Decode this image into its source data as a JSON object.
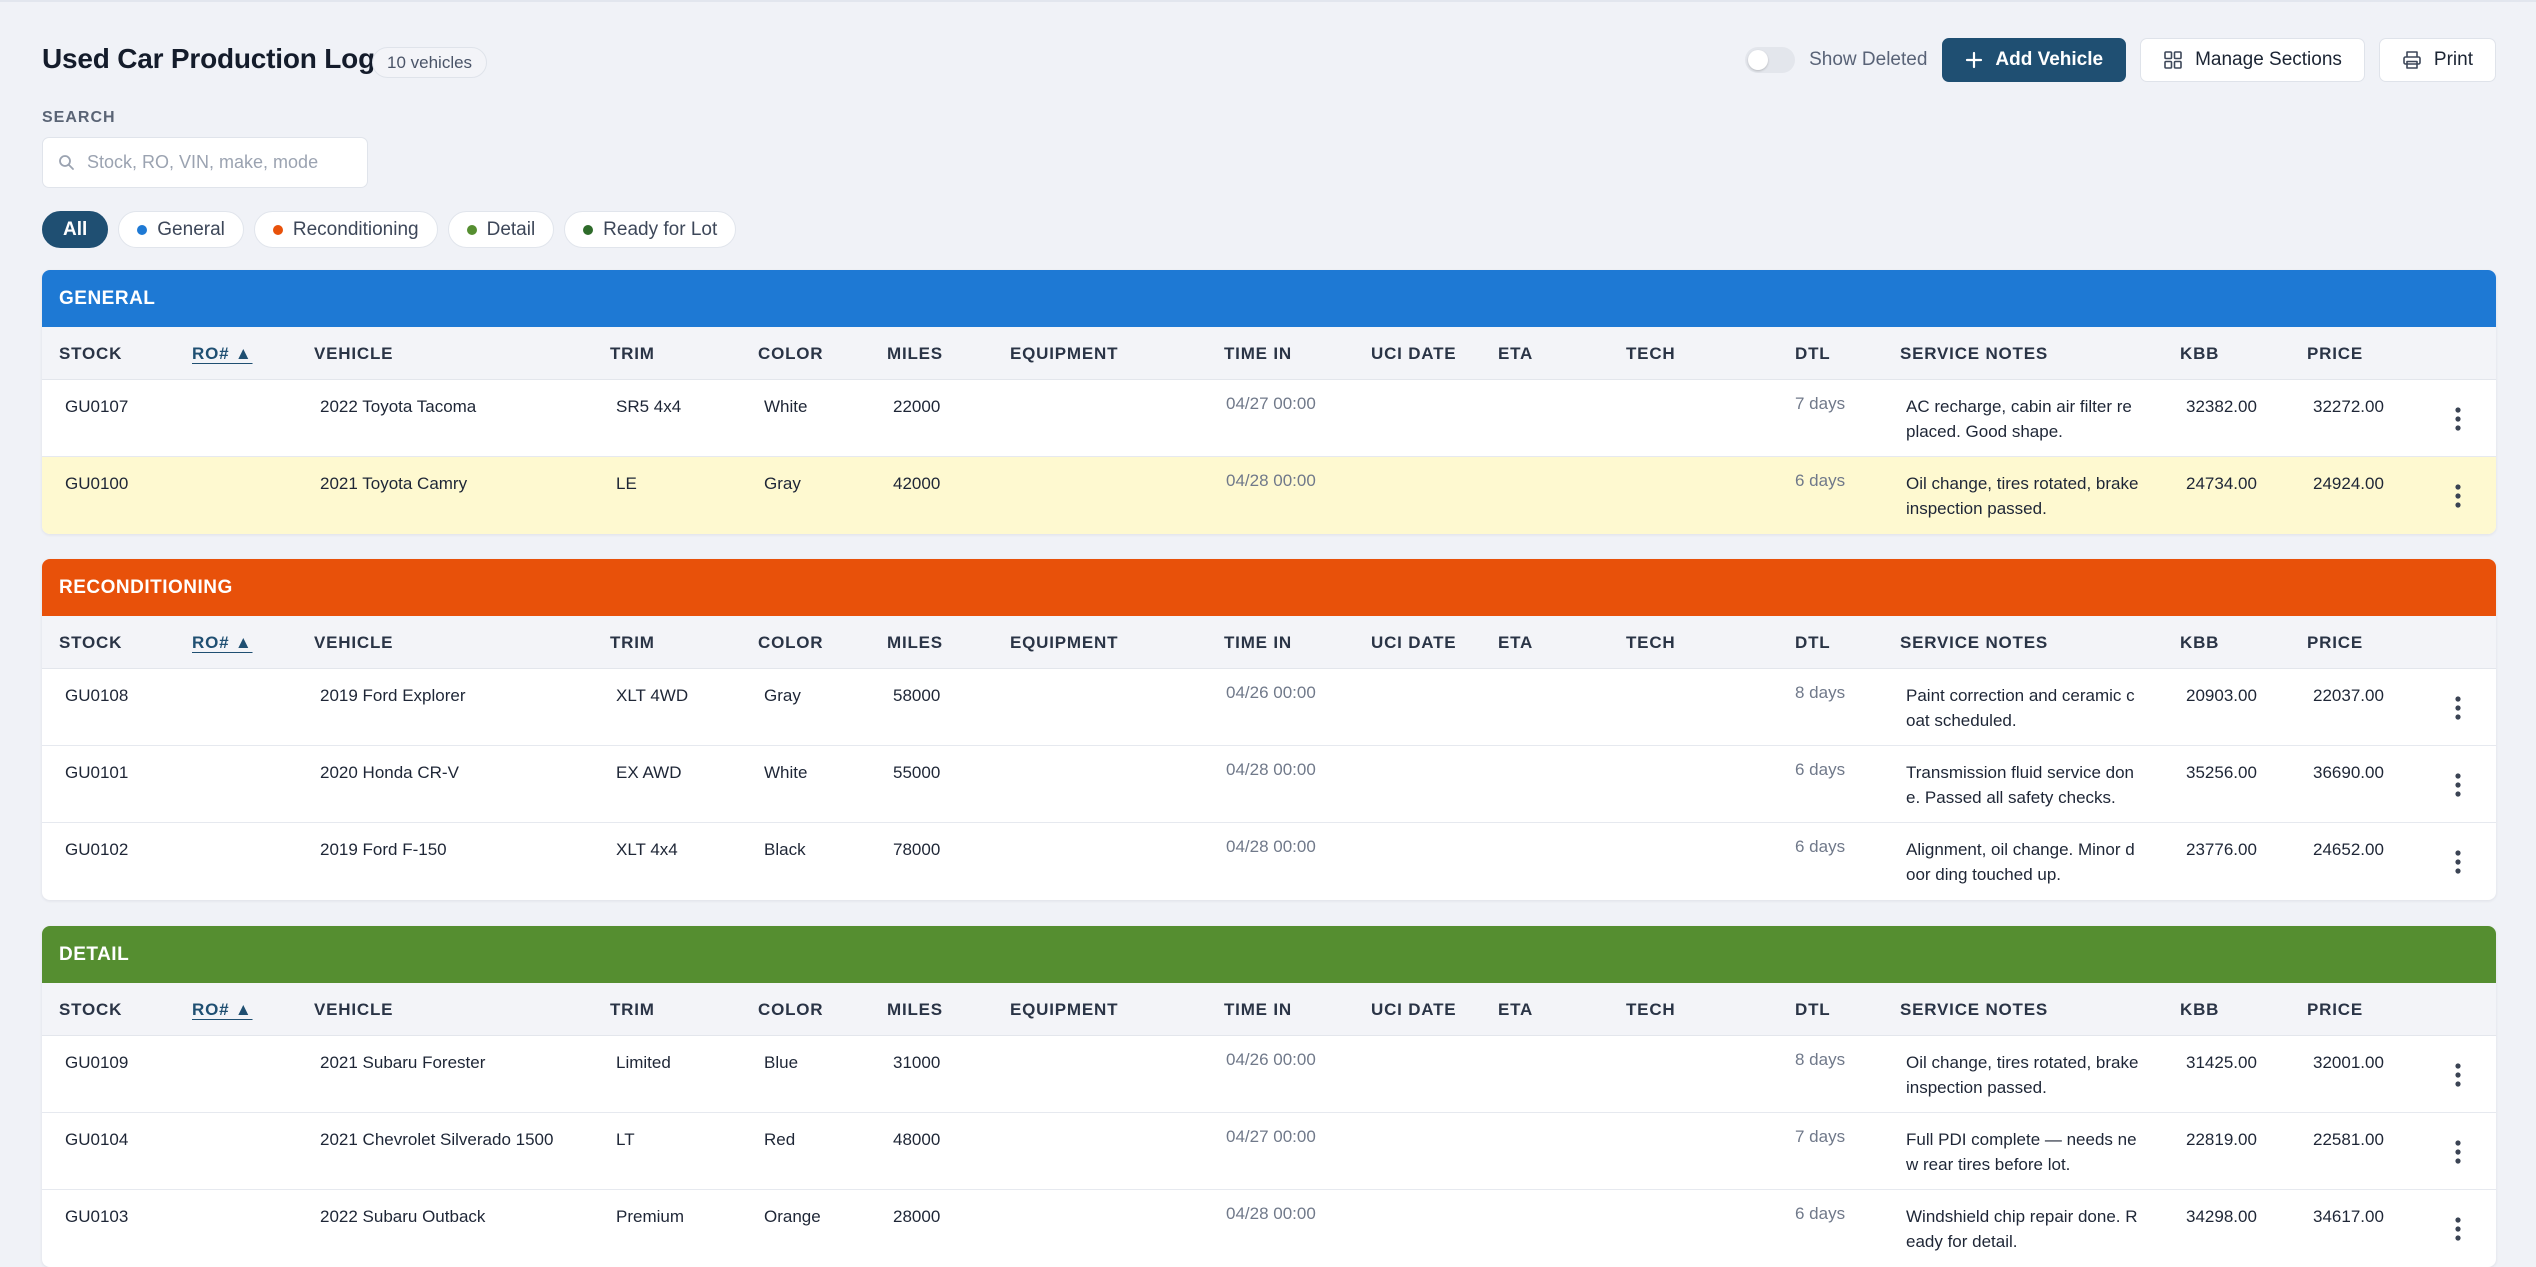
{
  "header": {
    "title": "Used Car Production Log",
    "count": "10 vehicles",
    "show_deleted_label": "Show Deleted",
    "add_vehicle_label": "Add Vehicle",
    "manage_sections_label": "Manage Sections",
    "print_label": "Print"
  },
  "search": {
    "label": "SEARCH",
    "placeholder": "Stock, RO, VIN, make, mode"
  },
  "filters": [
    {
      "label": "All",
      "active": true
    },
    {
      "label": "General",
      "color": "#1e79d4"
    },
    {
      "label": "Reconditioning",
      "color": "#e8510a"
    },
    {
      "label": "Detail",
      "color": "#558e30"
    },
    {
      "label": "Ready for Lot",
      "color": "#2e6b2a"
    }
  ],
  "columns": [
    "STOCK",
    "RO# ▲",
    "VEHICLE",
    "TRIM",
    "COLOR",
    "MILES",
    "EQUIPMENT",
    "TIME IN",
    "UCI DATE",
    "ETA",
    "TECH",
    "DTL",
    "SERVICE NOTES",
    "KBB",
    "PRICE"
  ],
  "sections": [
    {
      "name": "GENERAL",
      "color": "#1e79d4",
      "rows": [
        {
          "stock": "GU0107",
          "vehicle": "2022 Toyota Tacoma",
          "trim": "SR5 4x4",
          "color": "White",
          "miles": "22000",
          "time_in": "04/27 00:00",
          "dtl": "7 days",
          "notes_line1": "AC recharge, cabin air filter re",
          "notes_line2": "placed. Good shape.",
          "kbb": "32382.00",
          "price": "32272.00"
        },
        {
          "stock": "GU0100",
          "vehicle": "2021 Toyota Camry",
          "trim": "LE",
          "color": "Gray",
          "miles": "42000",
          "time_in": "04/28 00:00",
          "dtl": "6 days",
          "notes_line1": "Oil change, tires rotated, brake",
          "notes_line2": "inspection passed.",
          "kbb": "24734.00",
          "price": "24924.00",
          "highlight": true
        }
      ]
    },
    {
      "name": "RECONDITIONING",
      "color": "#e8510a",
      "rows": [
        {
          "stock": "GU0108",
          "vehicle": "2019 Ford Explorer",
          "trim": "XLT 4WD",
          "color": "Gray",
          "miles": "58000",
          "time_in": "04/26 00:00",
          "dtl": "8 days",
          "notes_line1": "Paint correction and ceramic c",
          "notes_line2": "oat scheduled.",
          "kbb": "20903.00",
          "price": "22037.00"
        },
        {
          "stock": "GU0101",
          "vehicle": "2020 Honda CR-V",
          "trim": "EX AWD",
          "color": "White",
          "miles": "55000",
          "time_in": "04/28 00:00",
          "dtl": "6 days",
          "notes_line1": "Transmission fluid service don",
          "notes_line2": "e. Passed all safety checks.",
          "kbb": "35256.00",
          "price": "36690.00"
        },
        {
          "stock": "GU0102",
          "vehicle": "2019 Ford F-150",
          "trim": "XLT 4x4",
          "color": "Black",
          "miles": "78000",
          "time_in": "04/28 00:00",
          "dtl": "6 days",
          "notes_line1": "Alignment, oil change. Minor d",
          "notes_line2": "oor ding touched up.",
          "kbb": "23776.00",
          "price": "24652.00"
        }
      ]
    },
    {
      "name": "DETAIL",
      "color": "#558e30",
      "rows": [
        {
          "stock": "GU0109",
          "vehicle": "2021 Subaru Forester",
          "trim": "Limited",
          "color": "Blue",
          "miles": "31000",
          "time_in": "04/26 00:00",
          "dtl": "8 days",
          "notes_line1": "Oil change, tires rotated, brake",
          "notes_line2": "inspection passed.",
          "kbb": "31425.00",
          "price": "32001.00"
        },
        {
          "stock": "GU0104",
          "vehicle": "2021 Chevrolet Silverado 1500",
          "trim": "LT",
          "color": "Red",
          "miles": "48000",
          "time_in": "04/27 00:00",
          "dtl": "7 days",
          "notes_line1": "Full PDI complete — needs ne",
          "notes_line2": "w rear tires before lot.",
          "kbb": "22819.00",
          "price": "22581.00"
        },
        {
          "stock": "GU0103",
          "vehicle": "2022 Subaru Outback",
          "trim": "Premium",
          "color": "Orange",
          "miles": "28000",
          "time_in": "04/28 00:00",
          "dtl": "6 days",
          "notes_line1": "Windshield chip repair done. R",
          "notes_line2": "eady for detail.",
          "kbb": "34298.00",
          "price": "34617.00"
        }
      ]
    }
  ]
}
